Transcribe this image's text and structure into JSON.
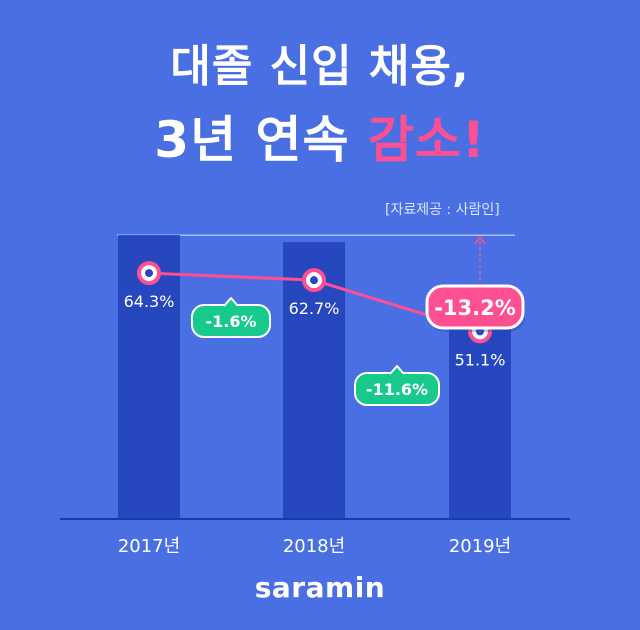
{
  "title": {
    "line1": "대졸 신입 채용,",
    "line2_prefix": "3년 연속 ",
    "line2_highlight": "감소!"
  },
  "source": "[자료제공 : 사람인]",
  "logo": "saramin",
  "colors": {
    "background": "#4a6fe3",
    "bar": "#2647bd",
    "line": "#ff4f93",
    "badge_green": "#17c98b",
    "badge_pink": "#ff4f93"
  },
  "chart_data": {
    "type": "bar",
    "categories": [
      "2017년",
      "2018년",
      "2019년"
    ],
    "values": [
      64.3,
      62.7,
      51.1
    ],
    "data_labels": [
      "64.3%",
      "62.7%",
      "51.1%"
    ],
    "unit": "%",
    "ylim": [
      0,
      65
    ],
    "changes": [
      {
        "label": "-1.6%",
        "color": "green"
      },
      {
        "label": "-11.6%",
        "color": "green"
      }
    ],
    "total_change": {
      "label": "-13.2%",
      "color": "pink"
    }
  }
}
